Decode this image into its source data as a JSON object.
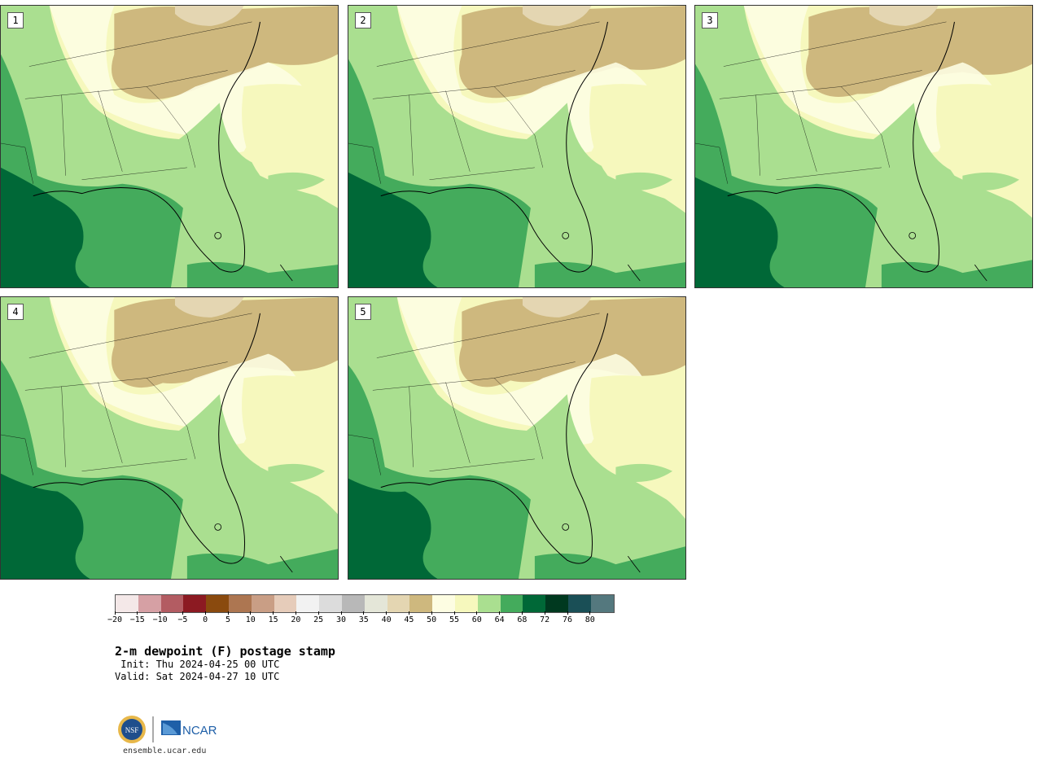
{
  "panels": [
    {
      "label": "1"
    },
    {
      "label": "2"
    },
    {
      "label": "3"
    },
    {
      "label": "4"
    },
    {
      "label": "5"
    }
  ],
  "colorbar": {
    "colors": [
      "#f4e8e8",
      "#d6a0a4",
      "#b35c62",
      "#8c1a22",
      "#8a4a0e",
      "#ad7651",
      "#c99e85",
      "#e6ccba",
      "#f2f2f2",
      "#dcdcdc",
      "#b8b8b8",
      "#e4e6d8",
      "#e4d6b2",
      "#ceb87e",
      "#fdfde2",
      "#f6f8bd",
      "#aadf90",
      "#44ab5c",
      "#006837",
      "#00391f",
      "#1a4f56",
      "#54787e"
    ],
    "tick_labels": [
      "−20",
      "−15",
      "−10",
      "−5",
      "0",
      "5",
      "10",
      "15",
      "20",
      "25",
      "30",
      "35",
      "40",
      "45",
      "50",
      "55",
      "60",
      "64",
      "68",
      "72",
      "76",
      "80"
    ]
  },
  "title": "2-m dewpoint (F) postage stamp",
  "init": " Init: Thu 2024-04-25 00 UTC",
  "valid": "Valid: Sat 2024-04-27 10 UTC",
  "logos": {
    "nsf": "NSF",
    "ncar": "NCAR"
  },
  "footer_url": "ensemble.ucar.edu"
}
